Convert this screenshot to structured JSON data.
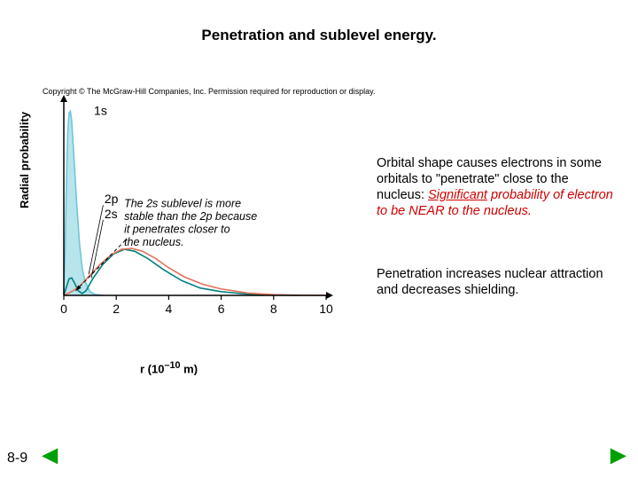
{
  "slide": {
    "title": "Penetration and sublevel energy.",
    "page_number": "8-9"
  },
  "copyright": "Copyright © The McGraw-Hill Companies, Inc. Permission required for reproduction or display.",
  "chart": {
    "type": "line",
    "ylabel": "Radial probability",
    "xlabel_prefix": "r (10",
    "xlabel_exp": "–10",
    "xlabel_suffix": " m)",
    "x_ticks": [
      0,
      2,
      4,
      6,
      8,
      10
    ],
    "series": [
      {
        "name": "1s",
        "color": "#6dc7d9",
        "fill": "#b8e4ec",
        "points": [
          [
            0,
            0
          ],
          [
            0.05,
            0.25
          ],
          [
            0.1,
            0.62
          ],
          [
            0.15,
            0.88
          ],
          [
            0.2,
            0.99
          ],
          [
            0.25,
            1.0
          ],
          [
            0.3,
            0.95
          ],
          [
            0.4,
            0.72
          ],
          [
            0.5,
            0.48
          ],
          [
            0.6,
            0.28
          ],
          [
            0.7,
            0.15
          ],
          [
            0.8,
            0.08
          ],
          [
            1.0,
            0.02
          ],
          [
            1.2,
            0.005
          ],
          [
            1.5,
            0
          ]
        ]
      },
      {
        "name": "2s",
        "color": "#008080",
        "points": [
          [
            0,
            0
          ],
          [
            0.1,
            0.045
          ],
          [
            0.2,
            0.09
          ],
          [
            0.3,
            0.095
          ],
          [
            0.4,
            0.07
          ],
          [
            0.55,
            0.025
          ],
          [
            0.7,
            0.01
          ],
          [
            0.85,
            0.025
          ],
          [
            1.1,
            0.09
          ],
          [
            1.5,
            0.17
          ],
          [
            1.9,
            0.225
          ],
          [
            2.3,
            0.25
          ],
          [
            2.7,
            0.24
          ],
          [
            3.2,
            0.2
          ],
          [
            3.8,
            0.14
          ],
          [
            4.5,
            0.08
          ],
          [
            5.2,
            0.04
          ],
          [
            6.0,
            0.02
          ],
          [
            7.0,
            0.007
          ],
          [
            8.0,
            0.002
          ],
          [
            9.0,
            0
          ]
        ]
      },
      {
        "name": "2p",
        "color": "#e0725a",
        "points": [
          [
            0,
            0
          ],
          [
            0.3,
            0.02
          ],
          [
            0.6,
            0.05
          ],
          [
            1.0,
            0.11
          ],
          [
            1.4,
            0.17
          ],
          [
            1.8,
            0.22
          ],
          [
            2.2,
            0.25
          ],
          [
            2.6,
            0.255
          ],
          [
            3.0,
            0.24
          ],
          [
            3.5,
            0.2
          ],
          [
            4.0,
            0.15
          ],
          [
            4.6,
            0.1
          ],
          [
            5.3,
            0.06
          ],
          [
            6.0,
            0.035
          ],
          [
            7.0,
            0.013
          ],
          [
            8.0,
            0.004
          ],
          [
            9.0,
            0.001
          ],
          [
            10.0,
            0
          ]
        ]
      }
    ],
    "labels": {
      "s1": "1s",
      "p2": "2p",
      "s2": "2s"
    },
    "note_line1": "The 2s sublevel is more",
    "note_line2": "stable than the 2p because",
    "note_line3": "it penetrates closer to",
    "note_line4": "the nucleus.",
    "axis_color": "#000000",
    "tick_fontsize": 14
  },
  "body": {
    "p1_a": "Orbital shape causes electrons in some orbitals to \"penetrate\" close to the nucleus: ",
    "p1_b_underline": "Significant",
    "p1_c": " probability of electron to be NEAR to the nucleus.",
    "p2": "Penetration increases nuclear attraction and decreases shielding."
  },
  "nav": {
    "prev": "◀",
    "next": "▶"
  }
}
